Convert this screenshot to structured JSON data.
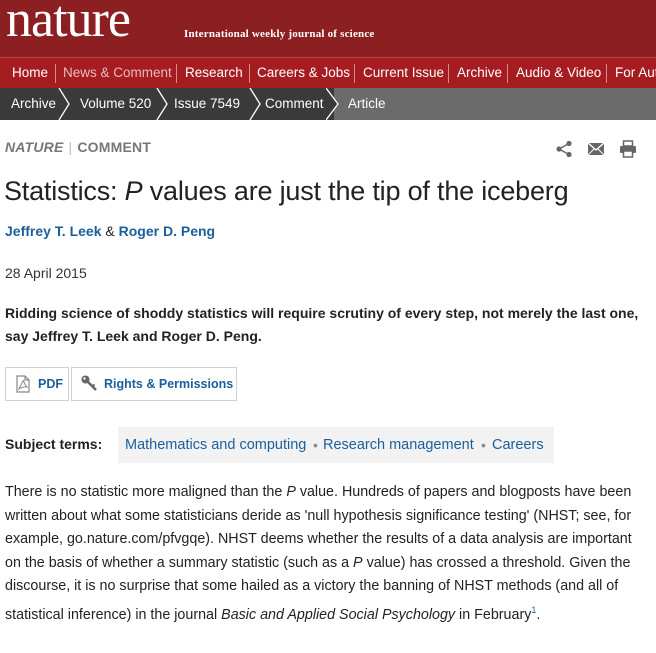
{
  "masthead": {
    "logo": "nature",
    "tagline": "International weekly journal of science"
  },
  "nav": {
    "items": [
      {
        "label": "Home"
      },
      {
        "label": "News & Comment"
      },
      {
        "label": "Research"
      },
      {
        "label": "Careers & Jobs"
      },
      {
        "label": "Current Issue"
      },
      {
        "label": "Archive"
      },
      {
        "label": "Audio & Video"
      },
      {
        "label": "For Aut"
      }
    ]
  },
  "breadcrumb": {
    "items": [
      {
        "label": "Archive"
      },
      {
        "label": "Volume 520"
      },
      {
        "label": "Issue 7549"
      },
      {
        "label": "Comment"
      },
      {
        "label": "Article"
      }
    ]
  },
  "article": {
    "journal": "NATURE",
    "section": "COMMENT",
    "title_prefix": "Statistics: ",
    "title_italic": "P",
    "title_suffix": " values are just the tip of the iceberg",
    "author1": "Jeffrey T. Leek",
    "author_sep": " & ",
    "author2": "Roger D. Peng",
    "date": "28 April 2015",
    "standfirst": "Ridding science of shoddy statistics will require scrutiny of every step, not merely the last one, say Jeffrey T. Leek and Roger D. Peng."
  },
  "actions": {
    "pdf_label": "PDF",
    "rights_label": "Rights & Permissions"
  },
  "tools": {
    "share": "share-icon",
    "email": "email-icon",
    "print": "print-icon"
  },
  "subjects": {
    "label": "Subject terms:",
    "items": [
      "Mathematics and computing",
      "Research management",
      "Careers"
    ],
    "separator": "•"
  },
  "body": {
    "p1_a": "There is no statistic more maligned than the ",
    "p1_b": "P",
    "p1_c": " value. Hundreds of papers and blogposts have been written about what some statisticians deride as 'null hypothesis significance testing' (NHST; see, for example, go.nature.com/pfvgqe). NHST deems whether the results of a data analysis are important on the basis of whether a summary statistic (such as a ",
    "p1_d": "P",
    "p1_e": " value) has crossed a threshold. Given the discourse, it is no surprise that some hailed as a victory the banning of NHST methods (and all of statistical inference) in the journal ",
    "p1_f": "Basic and Applied Social Psychology",
    "p1_g": " in February",
    "p1_ref": "1",
    "p1_h": "."
  },
  "colors": {
    "masthead": "#8c1f21",
    "nav": "#a51d20",
    "breadcrumb": "#3a3a3a",
    "breadcrumb_active": "#6b6b6b",
    "link": "#1a5f9c"
  }
}
